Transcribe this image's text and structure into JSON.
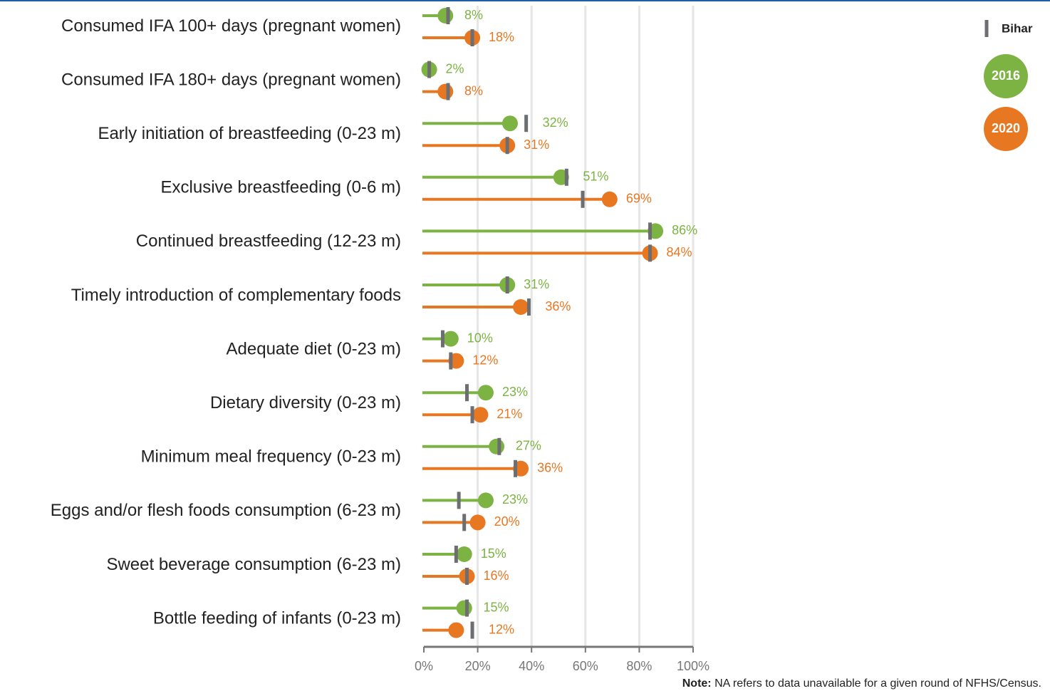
{
  "chart_data": {
    "type": "lollipop",
    "categories": [
      "Consumed IFA 100+ days (pregnant women)",
      "Consumed IFA 180+ days (pregnant women)",
      "Early initiation of breastfeeding (0-23 m)",
      "Exclusive breastfeeding (0-6 m)",
      "Continued breastfeeding (12-23 m)",
      "Timely introduction of complementary foods",
      "Adequate diet (0-23 m)",
      "Dietary diversity (0-23 m)",
      "Minimum meal frequency (0-23 m)",
      "Eggs and/or flesh foods consumption (6-23 m)",
      "Sweet beverage consumption (6-23 m)",
      "Bottle feeding of infants (0-23 m)"
    ],
    "series": [
      {
        "name": "2016",
        "color": "#7cb342",
        "values": [
          8,
          2,
          32,
          51,
          86,
          31,
          10,
          23,
          27,
          23,
          15,
          15
        ],
        "value_labels": [
          "8%",
          "2%",
          "32%",
          "51%",
          "86%",
          "31%",
          "10%",
          "23%",
          "27%",
          "23%",
          "15%",
          "15%"
        ]
      },
      {
        "name": "2020",
        "color": "#e87722",
        "values": [
          18,
          8,
          31,
          69,
          84,
          36,
          12,
          21,
          36,
          20,
          16,
          12
        ],
        "value_labels": [
          "18%",
          "8%",
          "31%",
          "69%",
          "84%",
          "36%",
          "12%",
          "21%",
          "36%",
          "20%",
          "16%",
          "12%"
        ]
      }
    ],
    "reference": {
      "name": "Bihar",
      "color": "#6d6e71",
      "series": [
        {
          "values": [
            9,
            2,
            38,
            53,
            84,
            31,
            7,
            16,
            28,
            13,
            12,
            16
          ]
        },
        {
          "values": [
            18,
            9,
            31,
            59,
            84,
            39,
            10,
            18,
            34,
            15,
            16,
            18
          ]
        }
      ]
    },
    "xlim": [
      0,
      100
    ],
    "xticks": [
      {
        "value": 0,
        "label": "0%"
      },
      {
        "value": 20,
        "label": "20%"
      },
      {
        "value": 40,
        "label": "40%"
      },
      {
        "value": 60,
        "label": "60%"
      },
      {
        "value": 80,
        "label": "80%"
      },
      {
        "value": 100,
        "label": "100%"
      }
    ],
    "grid": true,
    "legend": "top-right",
    "note": {
      "label": "Note:",
      "text": "NA refers to data unavailable for a given round of NFHS/Census."
    }
  }
}
